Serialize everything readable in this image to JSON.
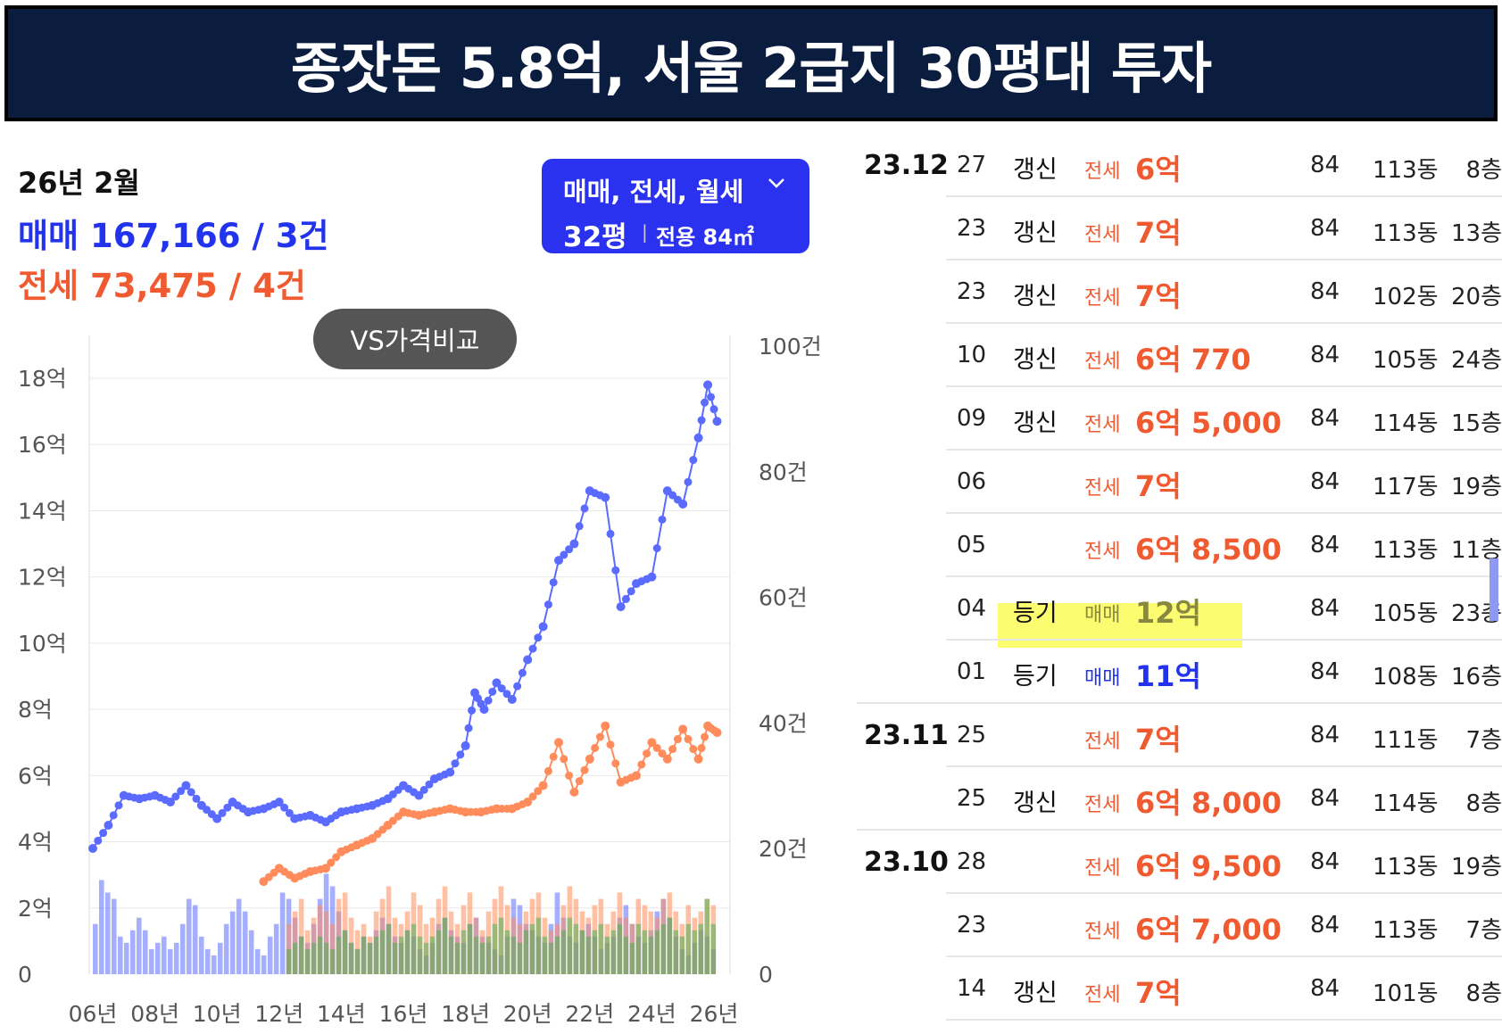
{
  "banner": {
    "title": "종잣돈 5.8억, 서울 2급지 30평대 투자"
  },
  "summary": {
    "period": "26년 2월",
    "sale": "매매 167,166 / 3건",
    "jeonse": "전세 73,475 / 4건"
  },
  "filter": {
    "types": "매매, 전세, 월세",
    "size": "32평",
    "separator": "|",
    "area": "전용 84㎡",
    "chevron_icon": "chevron-down-icon"
  },
  "vs_button": {
    "label": "VS가격비교"
  },
  "colors": {
    "banner_bg": "#0b1d3f",
    "sale": "#2233ee",
    "jeonse": "#f05a30",
    "sale_line": "#5b6bff",
    "jeonse_line": "#ff8c5a",
    "volume_green": "#4caf50",
    "highlight": "#fcfc70"
  },
  "chart_data": {
    "type": "line",
    "x_ticks": [
      "06년",
      "08년",
      "10년",
      "12년",
      "14년",
      "16년",
      "18년",
      "20년",
      "22년",
      "24년",
      "26년"
    ],
    "y_ticks_left": [
      "0",
      "2억",
      "4억",
      "6억",
      "8억",
      "10억",
      "12억",
      "14억",
      "16억",
      "18억"
    ],
    "y_ticks_right": [
      "0",
      "20건",
      "40건",
      "60건",
      "80건",
      "100건"
    ],
    "ylim_left": [
      0,
      18
    ],
    "ylim_right": [
      0,
      100
    ],
    "grid": true,
    "series": [
      {
        "name": "매매",
        "axis": "left",
        "points": [
          [
            2006.0,
            3.8
          ],
          [
            2006.5,
            4.5
          ],
          [
            2007.0,
            5.4
          ],
          [
            2007.5,
            5.3
          ],
          [
            2008.0,
            5.4
          ],
          [
            2008.5,
            5.2
          ],
          [
            2009.0,
            5.7
          ],
          [
            2009.5,
            5.1
          ],
          [
            2010.0,
            4.7
          ],
          [
            2010.5,
            5.2
          ],
          [
            2011.0,
            4.9
          ],
          [
            2011.5,
            5.0
          ],
          [
            2012.0,
            5.2
          ],
          [
            2012.5,
            4.7
          ],
          [
            2013.0,
            4.8
          ],
          [
            2013.5,
            4.6
          ],
          [
            2014.0,
            4.9
          ],
          [
            2014.5,
            5.0
          ],
          [
            2015.0,
            5.1
          ],
          [
            2015.5,
            5.3
          ],
          [
            2016.0,
            5.7
          ],
          [
            2016.5,
            5.4
          ],
          [
            2017.0,
            5.9
          ],
          [
            2017.5,
            6.1
          ],
          [
            2018.0,
            6.9
          ],
          [
            2018.3,
            8.5
          ],
          [
            2018.6,
            8.0
          ],
          [
            2019.0,
            8.8
          ],
          [
            2019.5,
            8.3
          ],
          [
            2020.0,
            9.5
          ],
          [
            2020.5,
            10.5
          ],
          [
            2021.0,
            12.5
          ],
          [
            2021.5,
            13.0
          ],
          [
            2022.0,
            14.6
          ],
          [
            2022.5,
            14.4
          ],
          [
            2023.0,
            11.1
          ],
          [
            2023.5,
            11.8
          ],
          [
            2024.0,
            12.0
          ],
          [
            2024.5,
            14.6
          ],
          [
            2025.0,
            14.2
          ],
          [
            2025.5,
            16.2
          ],
          [
            2025.8,
            17.8
          ],
          [
            2026.1,
            16.7
          ]
        ]
      },
      {
        "name": "전세",
        "axis": "left",
        "points": [
          [
            2011.5,
            2.8
          ],
          [
            2012.0,
            3.2
          ],
          [
            2012.5,
            2.9
          ],
          [
            2013.0,
            3.1
          ],
          [
            2013.5,
            3.2
          ],
          [
            2014.0,
            3.7
          ],
          [
            2014.5,
            3.9
          ],
          [
            2015.0,
            4.1
          ],
          [
            2015.5,
            4.5
          ],
          [
            2016.0,
            4.9
          ],
          [
            2016.5,
            4.8
          ],
          [
            2017.0,
            4.9
          ],
          [
            2017.5,
            5.0
          ],
          [
            2018.0,
            4.9
          ],
          [
            2018.5,
            4.9
          ],
          [
            2019.0,
            5.0
          ],
          [
            2019.5,
            5.0
          ],
          [
            2020.0,
            5.2
          ],
          [
            2020.5,
            5.7
          ],
          [
            2021.0,
            7.0
          ],
          [
            2021.5,
            5.5
          ],
          [
            2022.0,
            6.5
          ],
          [
            2022.5,
            7.5
          ],
          [
            2023.0,
            5.8
          ],
          [
            2023.5,
            6.0
          ],
          [
            2024.0,
            7.0
          ],
          [
            2024.5,
            6.5
          ],
          [
            2025.0,
            7.4
          ],
          [
            2025.5,
            6.5
          ],
          [
            2025.8,
            7.5
          ],
          [
            2026.1,
            7.3
          ]
        ]
      }
    ],
    "volume": {
      "axis": "right",
      "x_start": 2006.0,
      "x_end": 2026.1,
      "sale": [
        8,
        15,
        13,
        12,
        6,
        5,
        7,
        9,
        7,
        4,
        5,
        6,
        4,
        5,
        8,
        12,
        11,
        6,
        4,
        3,
        5,
        8,
        10,
        12,
        10,
        7,
        4,
        3,
        6,
        8,
        13,
        12,
        9,
        6,
        5,
        8,
        12,
        16,
        14,
        10,
        7,
        5,
        4,
        6,
        5,
        7,
        9,
        8,
        6,
        5,
        7,
        6,
        4,
        3,
        5,
        8,
        9,
        7,
        6,
        5,
        8,
        9,
        6,
        5,
        4,
        3,
        6,
        12,
        11,
        8,
        7,
        6,
        5,
        8,
        13,
        9,
        6,
        5,
        7,
        8,
        6,
        4,
        5,
        6,
        9,
        11,
        8,
        6,
        5,
        7,
        10,
        12,
        9,
        6,
        4,
        3,
        5,
        7,
        6,
        4
      ],
      "jeonse": [
        0,
        0,
        0,
        0,
        0,
        0,
        0,
        0,
        0,
        0,
        0,
        0,
        0,
        0,
        0,
        0,
        0,
        0,
        0,
        0,
        0,
        0,
        0,
        0,
        0,
        0,
        0,
        0,
        0,
        0,
        0,
        8,
        10,
        12,
        7,
        9,
        11,
        10,
        8,
        12,
        13,
        9,
        7,
        8,
        6,
        10,
        12,
        14,
        9,
        8,
        10,
        13,
        11,
        8,
        9,
        12,
        14,
        10,
        8,
        11,
        13,
        9,
        7,
        10,
        12,
        14,
        11,
        9,
        8,
        10,
        12,
        13,
        9,
        7,
        8,
        11,
        14,
        12,
        10,
        9,
        11,
        12,
        8,
        10,
        13,
        9,
        8,
        12,
        11,
        10,
        9,
        12,
        13,
        10,
        8,
        11,
        9,
        10,
        12,
        11
      ],
      "rent": [
        0,
        0,
        0,
        0,
        0,
        0,
        0,
        0,
        0,
        0,
        0,
        0,
        0,
        0,
        0,
        0,
        0,
        0,
        0,
        0,
        0,
        0,
        0,
        0,
        0,
        0,
        0,
        0,
        0,
        0,
        0,
        4,
        5,
        6,
        4,
        5,
        6,
        5,
        4,
        6,
        7,
        5,
        4,
        6,
        5,
        6,
        7,
        8,
        5,
        6,
        7,
        8,
        6,
        5,
        6,
        7,
        9,
        6,
        5,
        7,
        8,
        6,
        5,
        6,
        8,
        9,
        7,
        6,
        5,
        7,
        8,
        9,
        6,
        5,
        6,
        7,
        9,
        8,
        7,
        6,
        7,
        8,
        6,
        7,
        8,
        6,
        5,
        8,
        7,
        6,
        7,
        8,
        9,
        7,
        6,
        8,
        7,
        8,
        12,
        8
      ]
    }
  },
  "transactions": [
    {
      "month": "23.12",
      "day": "27",
      "type": "갱신",
      "kind": "전세",
      "price": "6억",
      "area": "84",
      "dong": "113동",
      "floor": "8층"
    },
    {
      "month": "",
      "day": "23",
      "type": "갱신",
      "kind": "전세",
      "price": "7억",
      "area": "84",
      "dong": "113동",
      "floor": "13층"
    },
    {
      "month": "",
      "day": "23",
      "type": "갱신",
      "kind": "전세",
      "price": "7억",
      "area": "84",
      "dong": "102동",
      "floor": "20층"
    },
    {
      "month": "",
      "day": "10",
      "type": "갱신",
      "kind": "전세",
      "price": "6억 770",
      "area": "84",
      "dong": "105동",
      "floor": "24층"
    },
    {
      "month": "",
      "day": "09",
      "type": "갱신",
      "kind": "전세",
      "price": "6억 5,000",
      "area": "84",
      "dong": "114동",
      "floor": "15층"
    },
    {
      "month": "",
      "day": "06",
      "type": "",
      "kind": "전세",
      "price": "7억",
      "area": "84",
      "dong": "117동",
      "floor": "19층"
    },
    {
      "month": "",
      "day": "05",
      "type": "",
      "kind": "전세",
      "price": "6억 8,500",
      "area": "84",
      "dong": "113동",
      "floor": "11층"
    },
    {
      "month": "",
      "day": "04",
      "type": "등기",
      "kind": "매매",
      "price": "12억",
      "area": "84",
      "dong": "105동",
      "floor": "23층",
      "highlight": true
    },
    {
      "month": "",
      "day": "01",
      "type": "등기",
      "kind": "매매",
      "price": "11억",
      "area": "84",
      "dong": "108동",
      "floor": "16층"
    },
    {
      "month": "23.11",
      "day": "25",
      "type": "",
      "kind": "전세",
      "price": "7억",
      "area": "84",
      "dong": "111동",
      "floor": "7층"
    },
    {
      "month": "",
      "day": "25",
      "type": "갱신",
      "kind": "전세",
      "price": "6억 8,000",
      "area": "84",
      "dong": "114동",
      "floor": "8층"
    },
    {
      "month": "23.10",
      "day": "28",
      "type": "",
      "kind": "전세",
      "price": "6억 9,500",
      "area": "84",
      "dong": "113동",
      "floor": "19층"
    },
    {
      "month": "",
      "day": "23",
      "type": "",
      "kind": "전세",
      "price": "6억 7,000",
      "area": "84",
      "dong": "113동",
      "floor": "7층"
    },
    {
      "month": "",
      "day": "14",
      "type": "갱신",
      "kind": "전세",
      "price": "7억",
      "area": "84",
      "dong": "101동",
      "floor": "8층"
    }
  ]
}
